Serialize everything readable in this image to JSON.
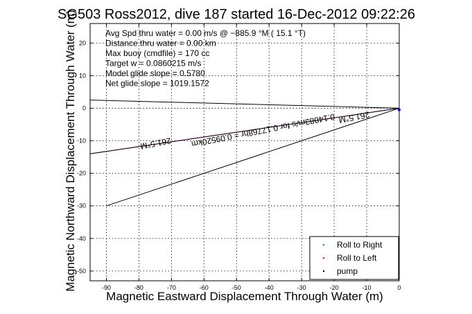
{
  "chart_data": {
    "type": "line",
    "title": "SG503 Ross2012, dive 187 started 16-Dec-2012 09:22:26",
    "xlabel": "Magnetic Eastward Displacement Through Water (m)",
    "ylabel": "Magnetic Northward Displacement Through Water (m)",
    "xlim": [
      -95,
      0
    ],
    "ylim": [
      -53,
      26
    ],
    "xticks": [
      -90,
      -80,
      -70,
      -60,
      -50,
      -40,
      -30,
      -20,
      -10,
      0
    ],
    "yticks": [
      20,
      10,
      0,
      -10,
      -20,
      -30,
      -40,
      -50
    ],
    "grid": true,
    "legend_position": "bottom-right",
    "info_lines": [
      "Avg Spd thru water = 0.00 m/s @ −885.9 °M ( 15.1 °T)",
      "Distance thru water = 0.00 km",
      "Max buoy (cmdfile) = 170 cc",
      "Target w = 0.0860215 m/s",
      "Model glide slope = 0.5780",
      "Net glide slope = 1019.1572"
    ],
    "annotations": [
      {
        "text": "261.5°M",
        "x": -14,
        "y": -2,
        "rotation": 169
      },
      {
        "text": "261.5°M",
        "x": -75,
        "y": -10,
        "rotation": 169
      },
      {
        "text": "0.14883m/s for 0.17768hr = 0.09520km",
        "x": -42,
        "y": -6,
        "rotation": 169
      }
    ],
    "series": [
      {
        "name": "Roll to Right",
        "color": "#00aa00",
        "points": []
      },
      {
        "name": "Roll to Left",
        "color": "#ff0000",
        "points": []
      },
      {
        "name": "pump",
        "color": "#000000",
        "points": []
      }
    ],
    "lines": [
      {
        "color": "#000000",
        "x": [
          0,
          -95
        ],
        "y": [
          0,
          2.5
        ]
      },
      {
        "color": "#ff00ff",
        "x": [
          0,
          -95
        ],
        "y": [
          0,
          -14
        ]
      },
      {
        "color": "#000000",
        "x": [
          0,
          -95
        ],
        "y": [
          0,
          -14
        ]
      },
      {
        "color": "#000000",
        "x": [
          0,
          -90
        ],
        "y": [
          0,
          -30
        ]
      }
    ],
    "end_marker": {
      "color": "#0000ff",
      "x": 0,
      "y": -0.5
    }
  }
}
